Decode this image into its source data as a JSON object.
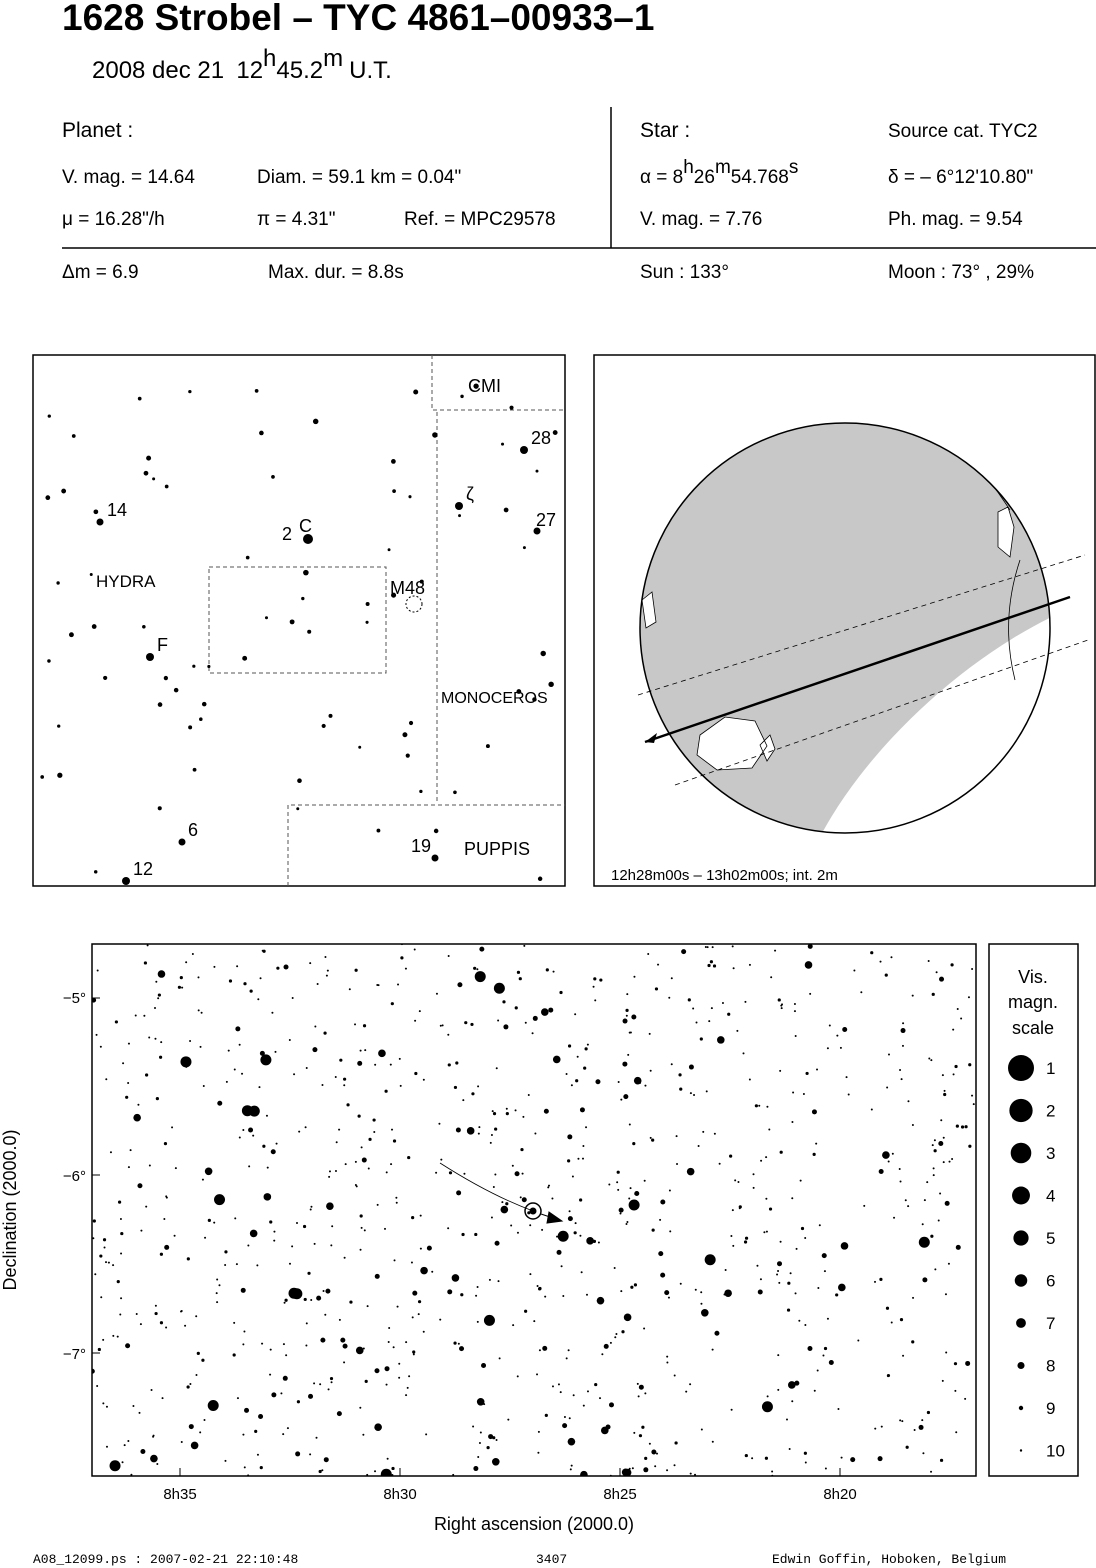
{
  "header": {
    "title": "1628 Strobel  –  TYC 4861–00933–1",
    "date": "2008 dec 21",
    "time_hours": "12",
    "time_h": "h",
    "time_minutes": "45.2",
    "time_m": "m",
    "time_scale": "U.T."
  },
  "info": {
    "planet_heading": "Planet :",
    "planet_vmag": "V. mag. = 14.64",
    "diameter": "Diam. = 59.1 km = 0.04\"",
    "motion": "μ =  16.28\"/h",
    "parallax": "π =  4.31\"",
    "reference": "Ref. = MPC29578",
    "delta_mag": "Δm = 6.9",
    "max_duration": "Max. dur. = 8.8s",
    "star_heading": "Star :",
    "source_catalog": "Source cat.  TYC2",
    "ra_prefix": "α =  8",
    "ra_h": "h",
    "ra_minutes": "26",
    "ra_m": "m",
    "ra_seconds": "54.768",
    "ra_s": "s",
    "declination": "δ = – 6°12'10.80\"",
    "star_vmag": "V. mag. =  7.76",
    "photo_mag": "Ph. mag. =  9.54",
    "sun": "Sun : 133°",
    "moon": "Moon :  73° , 29%"
  },
  "finder_chart": {
    "labels": [
      "CMI",
      "28",
      "ζ",
      "27",
      "14",
      "2",
      "C",
      "HYDRA",
      "M48",
      "F",
      "MONOCEROS",
      "6",
      "19",
      "PUPPIS",
      "12"
    ]
  },
  "globe": {
    "caption": "12h28m00s – 13h02m00s; int.  2m"
  },
  "star_chart": {
    "y_axis_title": "Declination (2000.0)",
    "x_axis_title": "Right ascension (2000.0)",
    "y_tick_labels": [
      "−5°",
      "−6°",
      "−7°"
    ],
    "x_tick_labels": [
      "8h35",
      "8h30",
      "8h25",
      "8h20"
    ],
    "scale_title": [
      "Vis.",
      "magn.",
      "scale"
    ],
    "scale_magnitudes": [
      1,
      2,
      3,
      4,
      5,
      6,
      7,
      8,
      9,
      10
    ]
  },
  "footer": {
    "file": "A08_12099.ps : 2007-02-21 22:10:48",
    "number": "3407",
    "author": "Edwin Goffin, Hoboken, Belgium"
  }
}
